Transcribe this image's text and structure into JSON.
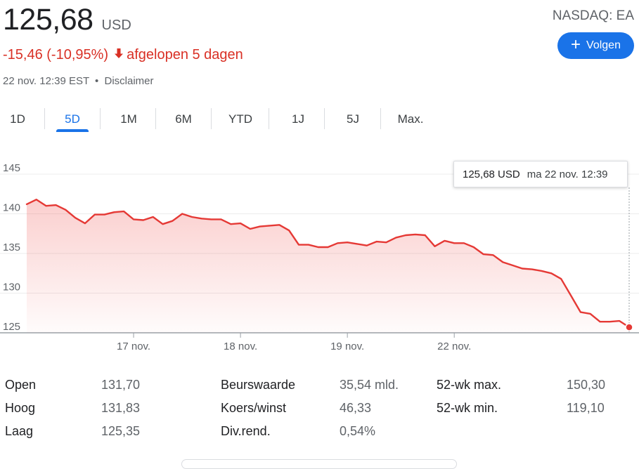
{
  "quote": {
    "price": "125,68",
    "currency": "USD",
    "exchange": "NASDAQ: EA",
    "change": "-15,46 (-10,95%)",
    "period": "afgelopen 5 dagen",
    "timestamp": "22 nov. 12:39 EST",
    "separator": "•",
    "disclaimer": "Disclaimer",
    "follow_label": "Volgen"
  },
  "tabs": [
    "1D",
    "5D",
    "1M",
    "6M",
    "YTD",
    "1J",
    "5J",
    "Max."
  ],
  "active_tab": "5D",
  "tooltip": {
    "price": "125,68 USD",
    "time": "ma 22 nov. 12:39"
  },
  "colors": {
    "line": "#e53935",
    "accent": "#1a73e8",
    "negative": "#d93025"
  },
  "chart_data": {
    "type": "area",
    "ylim": [
      125,
      145
    ],
    "yticks": [
      "145",
      "140",
      "135",
      "130",
      "125"
    ],
    "ytick_values": [
      145,
      140,
      135,
      130,
      125
    ],
    "xtick_labels": [
      "17 nov.",
      "18 nov.",
      "19 nov.",
      "22 nov."
    ],
    "xtick_index": [
      11,
      22,
      33,
      44
    ],
    "grid": true,
    "values": [
      141.2,
      141.8,
      141.0,
      141.1,
      140.5,
      139.5,
      138.8,
      139.9,
      139.9,
      140.2,
      140.3,
      139.3,
      139.2,
      139.6,
      138.7,
      139.1,
      140.0,
      139.6,
      139.4,
      139.3,
      139.3,
      138.7,
      138.8,
      138.1,
      138.4,
      138.5,
      138.6,
      137.9,
      136.1,
      136.1,
      135.8,
      135.8,
      136.3,
      136.4,
      136.2,
      136.0,
      136.5,
      136.4,
      137.0,
      137.3,
      137.4,
      137.3,
      135.9,
      136.6,
      136.3,
      136.3,
      135.8,
      134.9,
      134.8,
      133.9,
      133.5,
      133.1,
      133.0,
      132.8,
      132.5,
      131.8,
      129.7,
      127.6,
      127.4,
      126.4,
      126.4,
      126.5,
      125.7
    ]
  },
  "stats": [
    {
      "label": "Open",
      "value": "131,70"
    },
    {
      "label": "Hoog",
      "value": "131,83"
    },
    {
      "label": "Laag",
      "value": "125,35"
    },
    {
      "label": "Beurswaarde",
      "value": "35,54 mld."
    },
    {
      "label": "Koers/winst",
      "value": "46,33"
    },
    {
      "label": "Div.rend.",
      "value": "0,54%"
    },
    {
      "label": "52-wk max.",
      "value": "150,30"
    },
    {
      "label": "52-wk min.",
      "value": "119,10"
    }
  ]
}
